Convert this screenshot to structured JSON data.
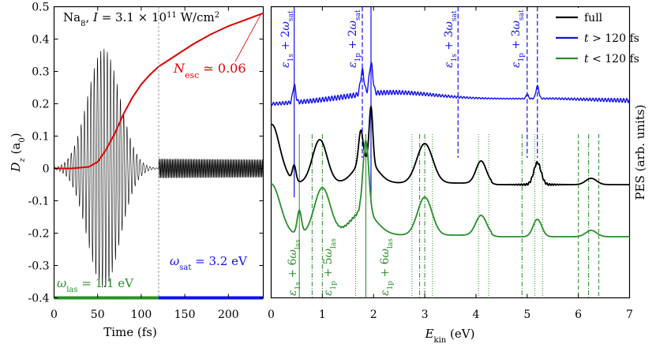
{
  "chart_data": [
    {
      "type": "line",
      "title": "Na8, I = 3.1 × 10^11 W/cm^2",
      "xlabel": "Time (fs)",
      "ylabel": "D_z (a0)",
      "xlim": [
        0,
        240
      ],
      "ylim": [
        -0.4,
        0.5
      ],
      "x_ticks": [
        "0",
        "50",
        "100",
        "150",
        "200"
      ],
      "y_ticks": [
        "0.5",
        "0.4",
        "0.3",
        "0.2",
        "0.1",
        "0",
        "-0.1",
        "-0.2",
        "-0.3",
        "-0.4"
      ],
      "series": [
        {
          "name": "D_z",
          "color": "#000000",
          "description_points": {
            "pulse_center_fs": 57,
            "pulse_peak_amplitude": 0.37,
            "oscillation_period_fs": 3.76,
            "after_switch_amplitude": 0.03,
            "after_switch_period_fs": 1.29
          }
        },
        {
          "name": "N_esc",
          "color": "#e00000",
          "x": [
            0,
            20,
            40,
            50,
            60,
            70,
            80,
            90,
            100,
            110,
            120,
            140,
            160,
            180,
            200,
            220,
            240
          ],
          "y": [
            0,
            0.0,
            0.005,
            0.02,
            0.06,
            0.11,
            0.17,
            0.22,
            0.26,
            0.29,
            0.315,
            0.35,
            0.385,
            0.415,
            0.44,
            0.46,
            0.48
          ]
        }
      ],
      "markers": {
        "switch_time_fs": 120,
        "omega_las_value": -0.4,
        "omega_las_color": "#2a8f2a",
        "omega_sat_color": "#1010f0"
      },
      "annotations": {
        "n_esc": "N_esc ≃ 0.06",
        "omega_las": "ω_las = 1.1 eV",
        "omega_sat": "ω_sat = 3.2 eV"
      },
      "grid": false
    },
    {
      "type": "line",
      "xlabel": "E_kin (eV)",
      "ylabel": "PES (arb. units)",
      "xlim": [
        0,
        7
      ],
      "x_ticks": [
        "0",
        "1",
        "2",
        "3",
        "4",
        "5",
        "6",
        "7"
      ],
      "legend_position": "top-right",
      "series": [
        {
          "name": "full",
          "color": "#000000"
        },
        {
          "name": "t > 120 fs",
          "color": "#1010f0"
        },
        {
          "name": "t < 120 fs",
          "color": "#2a8f2a"
        }
      ],
      "blue_lines": {
        "solid_eV": [
          0.45,
          1.95
        ],
        "dashed_eV": [
          1.78,
          3.65,
          5.0,
          5.2
        ],
        "labels": [
          "ε1s + 2ωsat",
          "ε1p + 2ωsat",
          "ε1s + 3ωsat",
          "ε1p + 3ωsat"
        ]
      },
      "green_lines": {
        "solid_eV": [
          0.55,
          1.85
        ],
        "dashdot_eV": [
          0.8,
          1.0,
          2.9,
          3.0,
          4.9,
          6.2
        ],
        "dotted_eV": [
          1.65,
          2.75,
          3.15,
          4.05,
          4.25,
          5.15,
          5.3
        ],
        "dashed_eV": [
          6.0,
          6.4
        ],
        "labels": [
          "ε1s + 6ωlas",
          "ε1p + 5ωlas",
          "ε1p + 6ωlas"
        ]
      },
      "grid": false
    }
  ]
}
